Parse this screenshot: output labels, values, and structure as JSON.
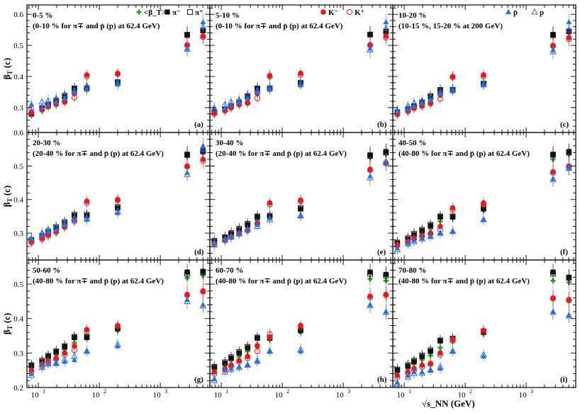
{
  "colors": {
    "avg_beta": "#2ca02c",
    "pion_minus": "#111111",
    "pion_plus": "#111111",
    "kaon_minus": "#e41a1c",
    "kaon_plus": "#e41a1c",
    "pbar": "#2f6fdc",
    "proton": "#2f6fdc"
  },
  "legend": {
    "avg": "<β_T>",
    "pim": "π⁻",
    "pip": "π⁺",
    "km": "K⁻",
    "kp": "K⁺",
    "pbar": "p̄",
    "p": "p"
  },
  "axis": {
    "ylabel_main": "β",
    "ylabel_sub": "T",
    "ylabel_unit": "(c)",
    "xlabel": "√s_NN (GeV)",
    "y_ticks_top": [
      "0.6",
      "0.5",
      "0.4",
      "0.3"
    ],
    "y_ticks": [
      "0.6",
      "0.5",
      "0.4",
      "0.3"
    ],
    "y_ticks_bottom": [
      "0.5",
      "0.4",
      "0.3",
      "0.2"
    ],
    "x_ticks": [
      "10",
      "10",
      "10"
    ],
    "x_tick_exps": [
      "1",
      "2",
      "3"
    ]
  },
  "chart_data": {
    "type": "scatter",
    "x_scale": "log",
    "x_range": [
      6.5,
      6500
    ],
    "energies": [
      7.7,
      11.5,
      14.5,
      19.6,
      27,
      39,
      62.4,
      200,
      2760,
      5020
    ],
    "series_order": [
      "avg_beta",
      "pion_minus",
      "pion_plus",
      "kaon_minus",
      "kaon_plus",
      "pbar",
      "proton"
    ],
    "markers": {
      "avg_beta": "plus",
      "pion_minus": "square-filled",
      "pion_plus": "square-open",
      "kaon_minus": "circle-filled",
      "kaon_plus": "circle-open",
      "pbar": "triangle-filled",
      "proton": "triangle-open"
    },
    "panels": [
      {
        "id": "a",
        "label": "(a)",
        "line1": "0-5 %",
        "line2": "(0-10 % for π∓ and p̄ (p) at 62.4 GeV)",
        "ylim": [
          0.22,
          0.63
        ],
        "series": {
          "avg_beta": [
            0.283,
            0.295,
            0.307,
            0.318,
            0.328,
            0.35,
            0.365,
            0.378,
            0.532,
            0.547
          ],
          "pion_minus": [
            0.28,
            0.297,
            0.31,
            0.32,
            0.335,
            0.36,
            0.36,
            0.38,
            0.535,
            0.547
          ],
          "pion_plus": [
            0.28,
            0.298,
            0.31,
            0.322,
            0.338,
            0.362,
            0.362,
            0.382,
            0.533,
            0.548
          ],
          "kaon_minus": [
            0.285,
            0.295,
            0.305,
            0.31,
            0.32,
            0.345,
            0.405,
            0.41,
            0.502,
            0.53
          ],
          "kaon_plus": [
            0.283,
            0.293,
            0.303,
            0.312,
            0.318,
            0.332,
            0.4,
            0.408,
            0.5,
            0.527
          ],
          "pbar": [
            0.31,
            0.3,
            0.31,
            0.318,
            0.33,
            0.35,
            0.36,
            0.375,
            0.49,
            0.575
          ],
          "proton": [
            0.3,
            0.318,
            0.322,
            0.33,
            0.342,
            0.355,
            0.37,
            0.38,
            0.488,
            0.56
          ]
        }
      },
      {
        "id": "b",
        "label": "(b)",
        "line1": "5-10 %",
        "line2": "(0-10 % for π∓ and p̄ (p) at 62.4 GeV)",
        "ylim": [
          0.22,
          0.63
        ],
        "series": {
          "avg_beta": [
            0.285,
            0.293,
            0.302,
            0.313,
            0.33,
            0.35,
            0.36,
            0.376,
            0.533,
            0.542
          ],
          "pion_minus": [
            0.285,
            0.295,
            0.305,
            0.315,
            0.335,
            0.36,
            0.36,
            0.378,
            0.535,
            0.545
          ],
          "pion_plus": [
            0.285,
            0.295,
            0.305,
            0.317,
            0.337,
            0.362,
            0.362,
            0.38,
            0.535,
            0.545
          ],
          "kaon_minus": [
            0.283,
            0.292,
            0.3,
            0.31,
            0.315,
            0.345,
            0.403,
            0.41,
            0.502,
            0.53
          ],
          "kaon_plus": [
            0.28,
            0.29,
            0.3,
            0.31,
            0.315,
            0.33,
            0.4,
            0.405,
            0.5,
            0.525
          ],
          "pbar": [
            0.3,
            0.298,
            0.31,
            0.318,
            0.33,
            0.35,
            0.36,
            0.372,
            0.49,
            0.575
          ],
          "proton": [
            0.295,
            0.31,
            0.318,
            0.325,
            0.34,
            0.355,
            0.365,
            0.378,
            0.485,
            0.555
          ]
        }
      },
      {
        "id": "c",
        "label": "(c)",
        "line1": "10-20 %",
        "line2": "(10-15 %, 15-20 % at 200 GeV)",
        "ylim": [
          0.22,
          0.63
        ],
        "series": {
          "avg_beta": [
            0.283,
            0.292,
            0.3,
            0.31,
            0.325,
            0.345,
            0.355,
            0.375,
            0.53,
            0.54
          ],
          "pion_minus": [
            0.285,
            0.295,
            0.305,
            0.315,
            0.335,
            0.355,
            0.355,
            0.375,
            0.535,
            0.545
          ],
          "pion_plus": [
            0.285,
            0.295,
            0.305,
            0.317,
            0.337,
            0.357,
            0.357,
            0.377,
            0.533,
            0.545
          ],
          "kaon_minus": [
            0.28,
            0.29,
            0.298,
            0.307,
            0.315,
            0.34,
            0.4,
            0.405,
            0.5,
            0.525
          ],
          "kaon_plus": [
            0.278,
            0.288,
            0.298,
            0.305,
            0.313,
            0.328,
            0.398,
            0.4,
            0.498,
            0.52
          ],
          "pbar": [
            0.29,
            0.295,
            0.305,
            0.315,
            0.325,
            0.345,
            0.355,
            0.372,
            0.485,
            0.575
          ],
          "proton": [
            0.29,
            0.305,
            0.315,
            0.322,
            0.335,
            0.35,
            0.36,
            0.375,
            0.48,
            0.55
          ]
        }
      },
      {
        "id": "d",
        "label": "(d)",
        "line1": "20-30 %",
        "line2": "(20-40 % for π∓ and p̄ (p) at 62.4 GeV)",
        "ylim": [
          0.22,
          0.6
        ],
        "series": {
          "avg_beta": [
            0.275,
            0.288,
            0.298,
            0.31,
            0.325,
            0.345,
            0.352,
            0.372,
            0.528,
            0.538
          ],
          "pion_minus": [
            0.278,
            0.29,
            0.302,
            0.315,
            0.33,
            0.352,
            0.352,
            0.375,
            0.535,
            0.543
          ],
          "pion_plus": [
            0.28,
            0.292,
            0.305,
            0.318,
            0.333,
            0.355,
            0.355,
            0.378,
            0.533,
            0.545
          ],
          "kaon_minus": [
            0.275,
            0.285,
            0.295,
            0.305,
            0.32,
            0.338,
            0.395,
            0.4,
            0.5,
            0.52
          ],
          "kaon_plus": [
            0.272,
            0.282,
            0.292,
            0.302,
            0.318,
            0.335,
            0.39,
            0.398,
            0.498,
            0.515
          ],
          "pbar": [
            0.285,
            0.295,
            0.305,
            0.31,
            0.325,
            0.34,
            0.34,
            0.36,
            0.48,
            0.56
          ],
          "proton": [
            0.283,
            0.3,
            0.31,
            0.318,
            0.33,
            0.345,
            0.345,
            0.365,
            0.475,
            0.55
          ]
        }
      },
      {
        "id": "e",
        "label": "(e)",
        "line1": "30-40 %",
        "line2": "(20-40 % for π∓ and p̄ (p) at 62.4 GeV)",
        "ylim": [
          0.22,
          0.6
        ],
        "series": {
          "avg_beta": [
            0.272,
            0.283,
            0.293,
            0.305,
            0.318,
            0.338,
            0.348,
            0.37,
            0.525,
            0.535
          ],
          "pion_minus": [
            0.275,
            0.287,
            0.298,
            0.31,
            0.325,
            0.348,
            0.35,
            0.372,
            0.533,
            0.543
          ],
          "pion_plus": [
            0.277,
            0.288,
            0.3,
            0.313,
            0.328,
            0.35,
            0.352,
            0.375,
            0.53,
            0.54
          ],
          "kaon_minus": [
            0.27,
            0.28,
            0.29,
            0.3,
            0.31,
            0.33,
            0.39,
            0.398,
            0.49,
            0.51
          ],
          "kaon_plus": [
            0.268,
            0.278,
            0.288,
            0.298,
            0.308,
            0.328,
            0.385,
            0.395,
            0.488,
            0.508
          ],
          "pbar": [
            0.27,
            0.283,
            0.29,
            0.3,
            0.31,
            0.325,
            0.345,
            0.35,
            0.47,
            0.515
          ],
          "proton": [
            0.265,
            0.28,
            0.288,
            0.298,
            0.31,
            0.32,
            0.34,
            0.352,
            0.465,
            0.51
          ]
        }
      },
      {
        "id": "f",
        "label": "(f)",
        "line1": "40-50 %",
        "line2": "(40-80 % for π∓ and p̄ (p) at 62.4 GeV)",
        "ylim": [
          0.22,
          0.6
        ],
        "series": {
          "avg_beta": [
            0.268,
            0.28,
            0.29,
            0.3,
            0.313,
            0.335,
            0.345,
            0.368,
            0.52,
            0.535
          ],
          "pion_minus": [
            0.27,
            0.282,
            0.295,
            0.307,
            0.322,
            0.348,
            0.348,
            0.372,
            0.535,
            0.543
          ],
          "pion_plus": [
            0.272,
            0.285,
            0.298,
            0.31,
            0.325,
            0.35,
            0.35,
            0.375,
            0.533,
            0.54
          ],
          "kaon_minus": [
            0.265,
            0.275,
            0.285,
            0.293,
            0.3,
            0.32,
            0.375,
            0.39,
            0.483,
            0.5
          ],
          "kaon_plus": [
            0.262,
            0.272,
            0.282,
            0.29,
            0.298,
            0.31,
            0.37,
            0.385,
            0.48,
            0.497
          ],
          "pbar": [
            0.255,
            0.27,
            0.278,
            0.285,
            0.29,
            0.3,
            0.305,
            0.34,
            0.462,
            0.495
          ],
          "proton": [
            0.25,
            0.268,
            0.275,
            0.283,
            0.29,
            0.3,
            0.305,
            0.34,
            0.46,
            0.493
          ]
        }
      },
      {
        "id": "g",
        "label": "(g)",
        "line1": "50-60 %",
        "line2": "(40-80 % for π∓ and p̄ (p) at 62.4 GeV)",
        "ylim": [
          0.2,
          0.57
        ],
        "series": {
          "avg_beta": [
            0.26,
            0.272,
            0.282,
            0.295,
            0.31,
            0.33,
            0.345,
            0.365,
            0.518,
            0.525
          ],
          "pion_minus": [
            0.263,
            0.275,
            0.29,
            0.303,
            0.318,
            0.345,
            0.345,
            0.37,
            0.535,
            0.537
          ],
          "pion_plus": [
            0.265,
            0.278,
            0.292,
            0.305,
            0.32,
            0.347,
            0.347,
            0.373,
            0.53,
            0.535
          ],
          "kaon_minus": [
            0.25,
            0.268,
            0.278,
            0.285,
            0.3,
            0.32,
            0.368,
            0.38,
            0.47,
            0.48
          ],
          "kaon_plus": [
            0.245,
            0.262,
            0.272,
            0.282,
            0.295,
            0.308,
            0.362,
            0.378,
            0.468,
            0.478
          ],
          "pbar": [
            0.24,
            0.265,
            0.27,
            0.27,
            0.275,
            0.28,
            0.305,
            0.32,
            0.455,
            0.44
          ],
          "proton": [
            0.235,
            0.258,
            0.268,
            0.27,
            0.28,
            0.29,
            0.305,
            0.325,
            0.45,
            0.437
          ]
        }
      },
      {
        "id": "h",
        "label": "(h)",
        "line1": "60-70 %",
        "line2": "(40-80 % for π∓ and p̄ (p) at 62.4 GeV)",
        "ylim": [
          0.2,
          0.57
        ],
        "series": {
          "avg_beta": [
            0.255,
            0.265,
            0.278,
            0.29,
            0.305,
            0.325,
            0.34,
            0.36,
            0.515,
            0.51
          ],
          "pion_minus": [
            0.258,
            0.27,
            0.285,
            0.3,
            0.315,
            0.343,
            0.343,
            0.365,
            0.535,
            0.528
          ],
          "pion_plus": [
            0.26,
            0.273,
            0.288,
            0.303,
            0.318,
            0.345,
            0.345,
            0.368,
            0.53,
            0.525
          ],
          "kaon_minus": [
            0.245,
            0.255,
            0.265,
            0.278,
            0.29,
            0.32,
            0.345,
            0.38,
            0.465,
            0.47
          ],
          "kaon_plus": [
            0.24,
            0.252,
            0.262,
            0.275,
            0.285,
            0.305,
            0.355,
            0.375,
            0.462,
            0.468
          ],
          "pbar": [
            0.225,
            0.25,
            0.255,
            0.26,
            0.265,
            0.275,
            0.305,
            0.305,
            0.44,
            0.42
          ],
          "proton": [
            0.22,
            0.245,
            0.252,
            0.258,
            0.265,
            0.278,
            0.305,
            0.31,
            0.438,
            0.418
          ]
        }
      },
      {
        "id": "i",
        "label": "(i)",
        "line1": "70-80 %",
        "line2": "(40-80 % for π∓ and p̄ (p) at 62.4 GeV)",
        "ylim": [
          0.2,
          0.57
        ],
        "series": {
          "avg_beta": [
            0.245,
            0.255,
            0.268,
            0.28,
            0.293,
            0.315,
            0.335,
            0.355,
            0.51,
            0.505
          ],
          "pion_minus": [
            0.25,
            0.262,
            0.275,
            0.29,
            0.305,
            0.335,
            0.34,
            0.36,
            0.535,
            0.52
          ],
          "pion_plus": [
            0.252,
            0.265,
            0.278,
            0.293,
            0.308,
            0.337,
            0.342,
            0.363,
            0.53,
            0.518
          ],
          "kaon_minus": [
            0.235,
            0.245,
            0.255,
            0.265,
            0.27,
            0.3,
            0.34,
            0.365,
            0.46,
            0.455
          ],
          "kaon_plus": [
            0.23,
            0.24,
            0.25,
            0.26,
            0.268,
            0.295,
            0.335,
            0.36,
            0.458,
            0.453
          ],
          "pbar": [
            0.215,
            0.235,
            0.245,
            0.245,
            0.25,
            0.255,
            0.305,
            0.29,
            0.42,
            0.41
          ],
          "proton": [
            0.21,
            0.23,
            0.24,
            0.242,
            0.25,
            0.26,
            0.305,
            0.295,
            0.418,
            0.408
          ]
        }
      }
    ]
  }
}
